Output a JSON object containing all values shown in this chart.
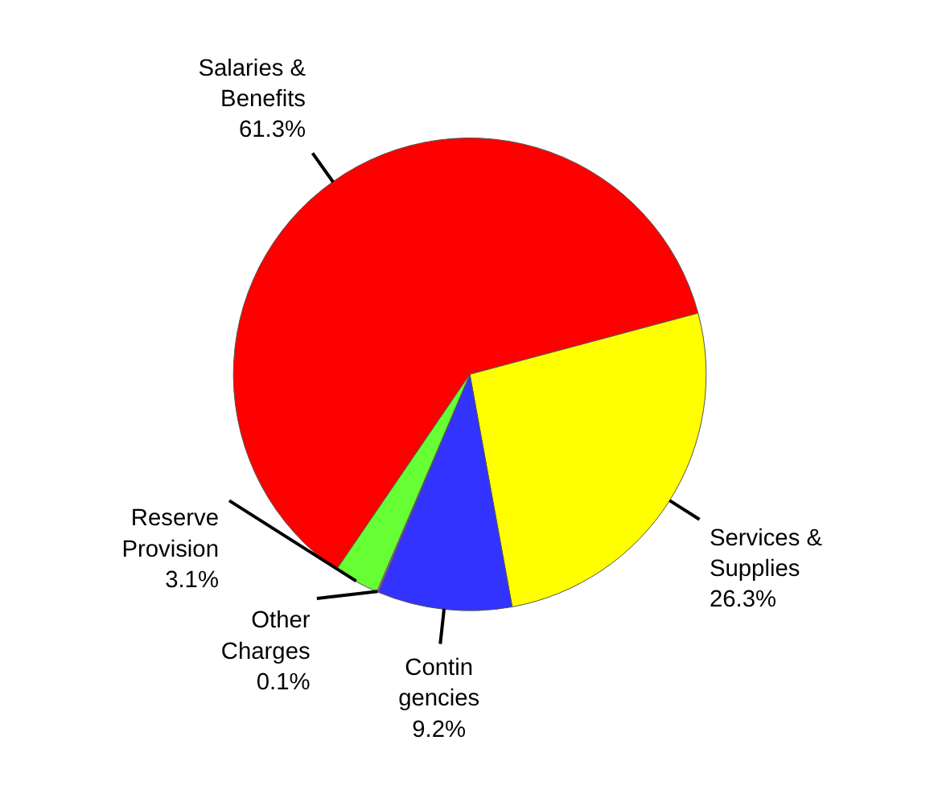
{
  "chart_data": {
    "type": "pie",
    "categories": [
      "Salaries & Benefits",
      "Services & Supplies",
      "Contin gencies",
      "Other Charges",
      "Reserve Provision"
    ],
    "values": [
      61.3,
      26.3,
      9.2,
      0.1,
      3.1
    ],
    "value_labels": [
      "61.3%",
      "26.3%",
      "9.2%",
      "0.1%",
      "3.1%"
    ],
    "colors": [
      "#ff0000",
      "#ffff00",
      "#3333ff",
      "#cc66cc",
      "#66ff33"
    ]
  }
}
